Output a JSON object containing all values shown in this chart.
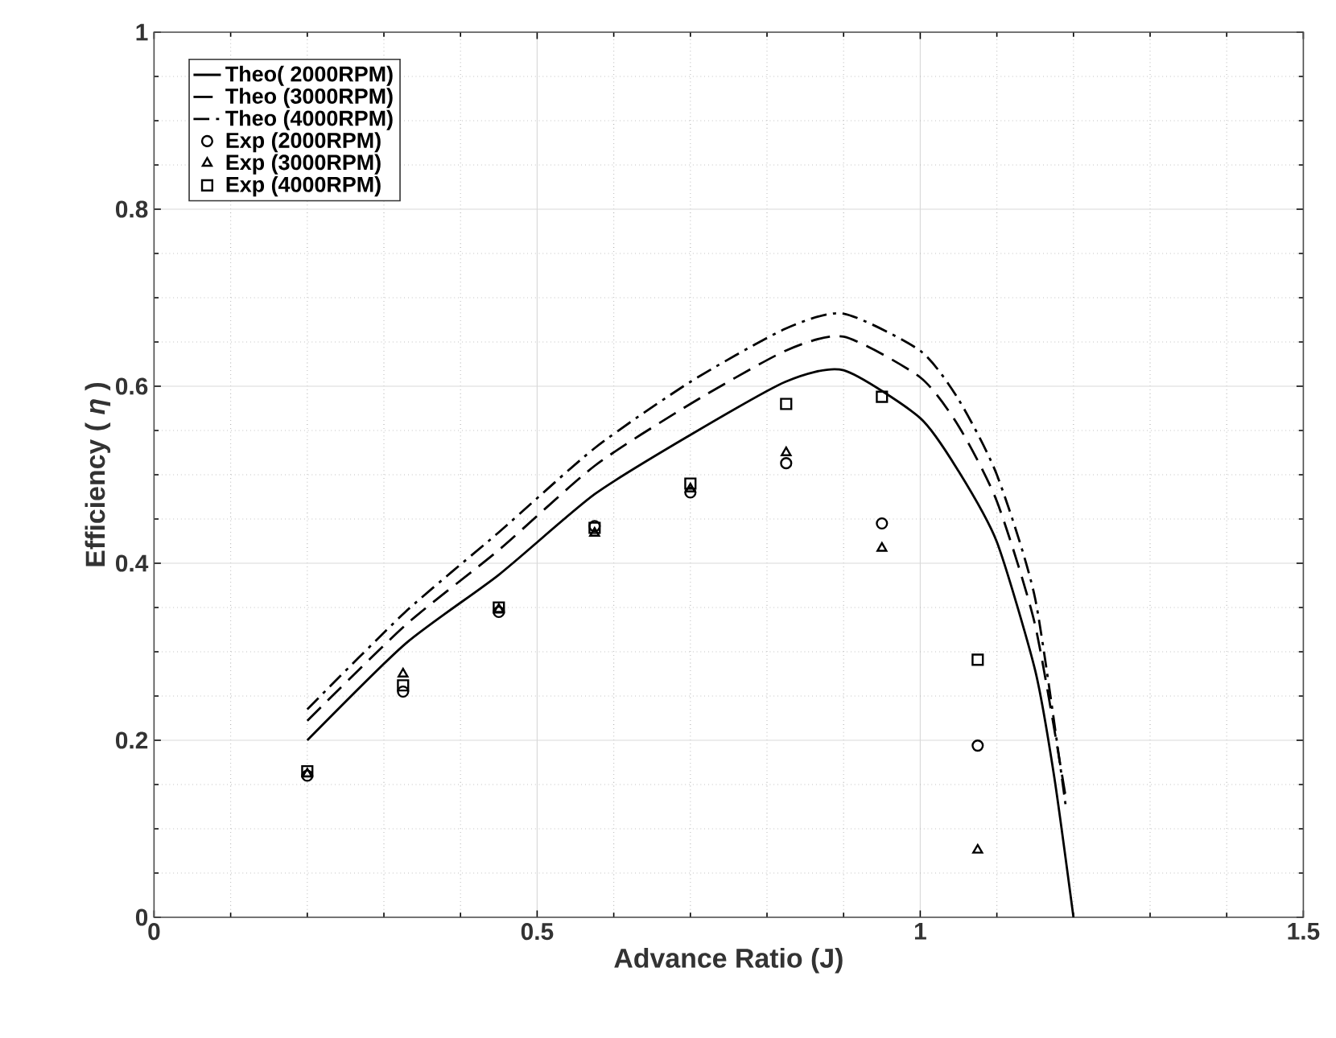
{
  "chart_data": {
    "type": "line",
    "xlabel": "Advance Ratio (J)",
    "ylabel": "Efficiency ( *η* )",
    "xlim": [
      0,
      1.5
    ],
    "ylim": [
      0,
      1
    ],
    "xticks": [
      0,
      0.5,
      1,
      1.5
    ],
    "yticks": [
      0,
      0.2,
      0.4,
      0.6,
      0.8,
      1
    ],
    "grid": true,
    "legend": "top left",
    "series": [
      {
        "name": "Theo( 2000RPM)",
        "color": "#000000",
        "line_style": "solid",
        "marker": "none",
        "x": [
          0.2,
          0.328,
          0.45,
          0.575,
          0.7,
          0.824,
          0.9,
          1.0,
          1.05,
          1.1,
          1.15,
          1.175,
          1.2
        ],
        "values": [
          0.2,
          0.309,
          0.387,
          0.478,
          0.545,
          0.605,
          0.618,
          0.564,
          0.504,
          0.424,
          0.279,
          0.158,
          0
        ]
      },
      {
        "name": "Theo (3000RPM)",
        "color": "#000000",
        "line_style": "dashed",
        "marker": "none",
        "x": [
          0.2,
          0.328,
          0.45,
          0.575,
          0.7,
          0.824,
          0.9,
          1.0,
          1.05,
          1.1,
          1.15,
          1.19
        ],
        "values": [
          0.222,
          0.33,
          0.415,
          0.51,
          0.58,
          0.64,
          0.656,
          0.61,
          0.555,
          0.47,
          0.33,
          0.135
        ]
      },
      {
        "name": "Theo (4000RPM)",
        "color": "#000000",
        "line_style": "dashdot",
        "marker": "none",
        "x": [
          0.2,
          0.328,
          0.45,
          0.575,
          0.7,
          0.824,
          0.9,
          1.0,
          1.05,
          1.1,
          1.15,
          1.19
        ],
        "values": [
          0.235,
          0.345,
          0.435,
          0.53,
          0.605,
          0.665,
          0.682,
          0.64,
          0.585,
          0.5,
          0.36,
          0.125
        ]
      },
      {
        "name": "Exp (2000RPM)",
        "type": "scatter",
        "color": "#000000",
        "marker": "circle",
        "x": [
          0.2,
          0.325,
          0.45,
          0.575,
          0.7,
          0.825,
          0.95,
          1.075
        ],
        "values": [
          0.16,
          0.255,
          0.345,
          0.442,
          0.48,
          0.513,
          0.445,
          0.194
        ]
      },
      {
        "name": "Exp (3000RPM)",
        "type": "scatter",
        "color": "#000000",
        "marker": "triangle",
        "x": [
          0.2,
          0.325,
          0.45,
          0.575,
          0.7,
          0.825,
          0.95,
          1.075
        ],
        "values": [
          0.162,
          0.275,
          0.348,
          0.434,
          0.484,
          0.525,
          0.417,
          0.076
        ]
      },
      {
        "name": "Exp (4000RPM)",
        "type": "scatter",
        "color": "#000000",
        "marker": "square",
        "x": [
          0.2,
          0.325,
          0.45,
          0.575,
          0.7,
          0.825,
          0.95,
          1.075
        ],
        "values": [
          0.165,
          0.262,
          0.35,
          0.44,
          0.49,
          0.58,
          0.588,
          0.291
        ]
      }
    ]
  }
}
